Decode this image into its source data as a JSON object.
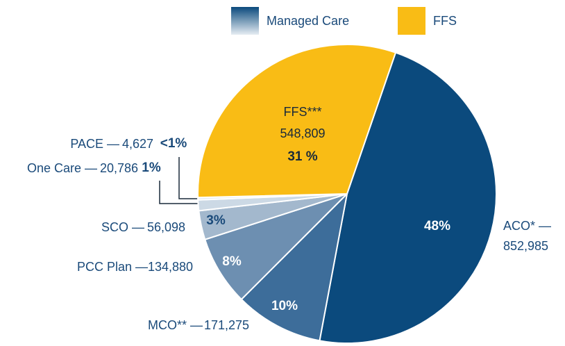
{
  "chart_data": {
    "type": "pie",
    "categories": [
      "ACO* —",
      "MCO** —",
      "PCC Plan —",
      "SCO —",
      "One Care —",
      "PACE —",
      "FFS***"
    ],
    "values": [
      852985,
      171275,
      134880,
      56098,
      20786,
      4627,
      548809
    ],
    "value_labels": [
      "852,985",
      "171,275",
      "134,880",
      "56,098",
      "20,786",
      "4,627",
      "548,809"
    ],
    "percent_labels": [
      "48%",
      "10%",
      "8%",
      "3%",
      "1%",
      "<1%",
      "31 %"
    ],
    "colors": [
      "#0b4a7d",
      "#3d6d9a",
      "#6d8fb1",
      "#a3b8cd",
      "#ccd9e5",
      "#e6edf3",
      "#f9bc15"
    ],
    "legend": [
      {
        "name": "Managed Care"
      },
      {
        "name": "FFS"
      }
    ]
  }
}
